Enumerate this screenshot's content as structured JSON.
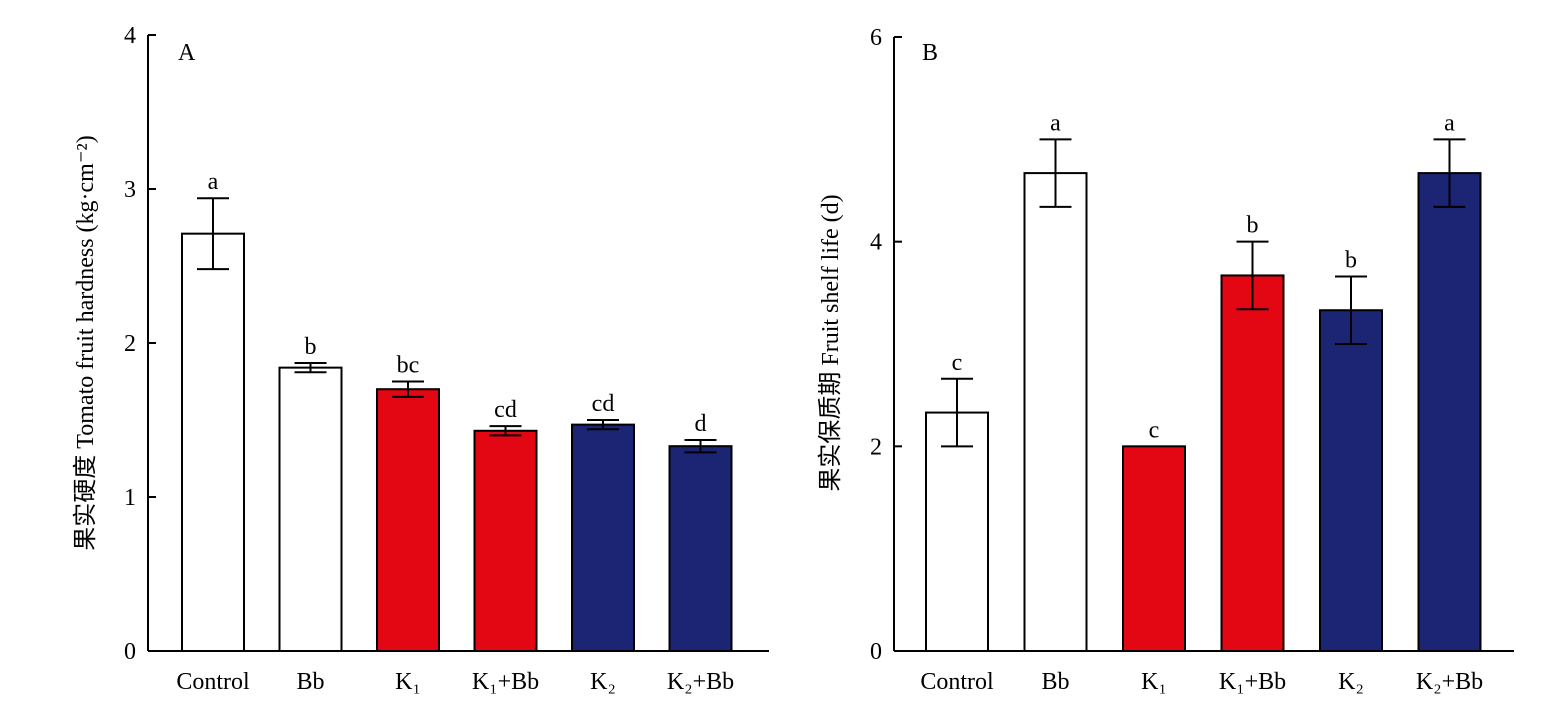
{
  "chart_data": [
    {
      "type": "bar",
      "panel_label": "A",
      "ylabel": "果实硬度 Tomato fruit hardness (kg·cm⁻²)",
      "ylim": [
        0,
        4
      ],
      "yticks": [
        "0",
        "1",
        "2",
        "3",
        "4"
      ],
      "categories": [
        "Control",
        "Bb",
        "K₁",
        "K₁+Bb",
        "K₂",
        "K₂+Bb"
      ],
      "values": [
        2.71,
        1.84,
        1.7,
        1.43,
        1.47,
        1.33
      ],
      "errors": [
        0.23,
        0.03,
        0.05,
        0.03,
        0.03,
        0.04
      ],
      "significance": [
        "a",
        "b",
        "bc",
        "cd",
        "cd",
        "d"
      ],
      "colors": [
        "#ffffff",
        "#ffffff",
        "#e30613",
        "#e30613",
        "#1b2573",
        "#1b2573"
      ],
      "grid": false
    },
    {
      "type": "bar",
      "panel_label": "B",
      "ylabel": "果实保质期 Fruit shelf life (d)",
      "ylim": [
        0,
        6
      ],
      "yticks": [
        "0",
        "2",
        "4",
        "6"
      ],
      "categories": [
        "Control",
        "Bb",
        "K₁",
        "K₁+Bb",
        "K₂",
        "K₂+Bb"
      ],
      "values": [
        2.33,
        4.67,
        2.0,
        3.67,
        3.33,
        4.67
      ],
      "errors": [
        0.33,
        0.33,
        0.0,
        0.33,
        0.33,
        0.33
      ],
      "significance": [
        "c",
        "a",
        "c",
        "b",
        "b",
        "a"
      ],
      "colors": [
        "#ffffff",
        "#ffffff",
        "#e30613",
        "#e30613",
        "#1b2573",
        "#1b2573"
      ],
      "grid": false
    }
  ]
}
